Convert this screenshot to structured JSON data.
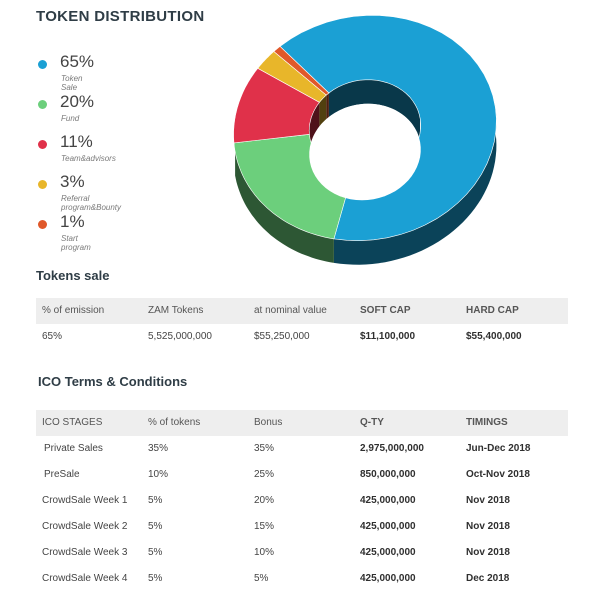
{
  "title": "TOKEN DISTRIBUTION",
  "chart_data": {
    "type": "pie",
    "variant": "3d-donut",
    "categories": [
      "Token Sale",
      "Fund",
      "Team&advisors",
      "Referral program&Bounty",
      "Start program"
    ],
    "values": [
      65,
      20,
      11,
      3,
      1
    ],
    "labels": [
      "65%",
      "20%",
      "11%",
      "3%",
      "1%"
    ],
    "outer_colors": [
      "#81c784",
      "#e0414f",
      "#f0c13a",
      "#1aa99c",
      "#dd5a49"
    ],
    "inner_colors": [
      "#1ba0d4",
      "#274b54",
      "#2a2a2a"
    ],
    "legend": [
      {
        "pct": "65%",
        "label": "Token Sale",
        "color": "#1ba0d4"
      },
      {
        "pct": "20%",
        "label": "Fund",
        "color": "#6ccf7c"
      },
      {
        "pct": "11%",
        "label": "Team&advisors",
        "color": "#e0314a"
      },
      {
        "pct": "3%",
        "label": "Referral program&Bounty",
        "color": "#e8b62a"
      },
      {
        "pct": "1%",
        "label": "Start program",
        "color": "#e0582a"
      }
    ]
  },
  "tokens_sale": {
    "title": "Tokens sale",
    "headers": [
      "% of emission",
      "ZAM Tokens",
      "at nominal value",
      "SOFT CAP",
      "HARD CAP"
    ],
    "row": [
      "65%",
      "5,525,000,000",
      "$55,250,000",
      "$11,100,000",
      "$55,400,000"
    ]
  },
  "ico_terms": {
    "title": "ICO Terms & Conditions",
    "headers": [
      "ICO STAGES",
      "% of tokens",
      "Bonus",
      "Q-TY",
      "TIMINGS"
    ],
    "rows": [
      [
        "Private Sales",
        "35%",
        "35%",
        "2,975,000,000",
        "Jun-Dec 2018"
      ],
      [
        "PreSale",
        "10%",
        "25%",
        "850,000,000",
        "Oct-Nov 2018"
      ],
      [
        "CrowdSale Week 1",
        "5%",
        "20%",
        "425,000,000",
        "Nov 2018"
      ],
      [
        "CrowdSale Week 2",
        "5%",
        "15%",
        "425,000,000",
        "Nov 2018"
      ],
      [
        "CrowdSale Week 3",
        "5%",
        "10%",
        "425,000,000",
        "Nov 2018"
      ],
      [
        "CrowdSale Week 4",
        "5%",
        "5%",
        "425,000,000",
        "Dec 2018"
      ]
    ]
  }
}
